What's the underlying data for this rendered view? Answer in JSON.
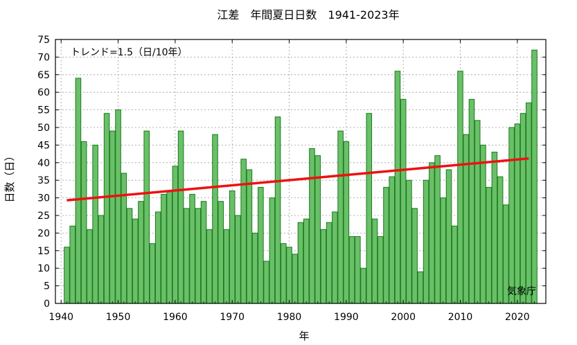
{
  "chart_data": {
    "type": "bar",
    "title": "江差　年間夏日日数　1941-2023年",
    "xlabel": "年",
    "ylabel": "日数（日）",
    "trend_label": "トレンド=1.5（日/10年）",
    "source_label": "気象庁",
    "xlim": [
      1939,
      2025
    ],
    "ylim": [
      0,
      75
    ],
    "x_ticks": [
      1940,
      1950,
      1960,
      1970,
      1980,
      1990,
      2000,
      2010,
      2020
    ],
    "y_ticks": [
      0,
      5,
      10,
      15,
      20,
      25,
      30,
      35,
      40,
      45,
      50,
      55,
      60,
      65,
      70,
      75
    ],
    "grid": true,
    "colors": {
      "bar_fill": "#6abf69",
      "bar_stroke": "#1a7a1a",
      "trend": "#ee1111",
      "grid": "#999999"
    },
    "series": [
      {
        "x": [
          1941,
          1942,
          1943,
          1944,
          1945,
          1946,
          1947,
          1948,
          1949,
          1950,
          1951,
          1952,
          1953,
          1954,
          1955,
          1956,
          1957,
          1958,
          1959,
          1960,
          1961,
          1962,
          1963,
          1964,
          1965,
          1966,
          1967,
          1968,
          1969,
          1970,
          1971,
          1972,
          1973,
          1974,
          1975,
          1976,
          1977,
          1978,
          1979,
          1980,
          1981,
          1982,
          1983,
          1984,
          1985,
          1986,
          1987,
          1988,
          1989,
          1990,
          1991,
          1992,
          1993,
          1994,
          1995,
          1996,
          1997,
          1998,
          1999,
          2000,
          2001,
          2002,
          2003,
          2004,
          2005,
          2006,
          2007,
          2008,
          2009,
          2010,
          2011,
          2012,
          2013,
          2014,
          2015,
          2016,
          2017,
          2018,
          2019,
          2020,
          2021,
          2022,
          2023
        ],
        "values": [
          16,
          22,
          64,
          46,
          21,
          45,
          25,
          54,
          49,
          55,
          37,
          27,
          24,
          29,
          49,
          17,
          26,
          31,
          32,
          39,
          49,
          27,
          31,
          27,
          29,
          21,
          48,
          29,
          21,
          32,
          25,
          41,
          38,
          20,
          33,
          12,
          30,
          53,
          17,
          16,
          14,
          23,
          24,
          44,
          42,
          21,
          23,
          26,
          49,
          46,
          19,
          19,
          10,
          54,
          24,
          19,
          33,
          36,
          66,
          58,
          35,
          27,
          9,
          35,
          40,
          42,
          30,
          38,
          22,
          66,
          48,
          58,
          52,
          45,
          33,
          43,
          36,
          28,
          50,
          51,
          54,
          57,
          72
        ]
      }
    ],
    "trend": {
      "x": [
        1941,
        2022
      ],
      "y": [
        29.3,
        41.2
      ]
    }
  }
}
